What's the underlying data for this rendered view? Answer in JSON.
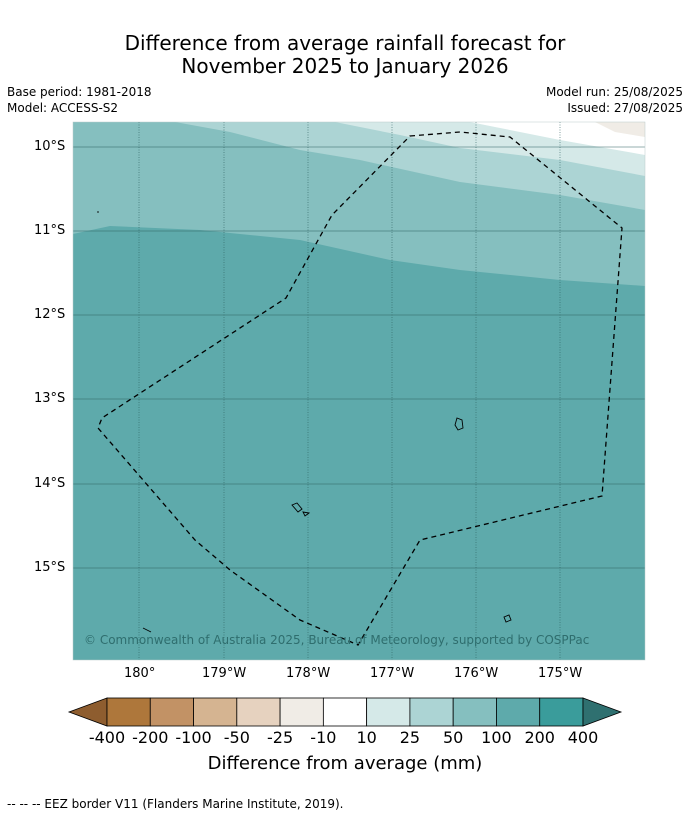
{
  "title_line1": "Difference from average rainfall forecast for",
  "title_line2": "November 2025 to January 2026",
  "base_period": "Base period: 1981-2018",
  "model": "Model: ACCESS-S2",
  "model_run": "Model run: 25/08/2025",
  "issued": "Issued: 27/08/2025",
  "copyright": "© Commonwealth of Australia 2025, Bureau of Meteorology, supported by COSPPac",
  "lat_labels": [
    "10°S",
    "11°S",
    "12°S",
    "13°S",
    "14°S",
    "15°S"
  ],
  "lon_labels": [
    "180°",
    "179°W",
    "178°W",
    "177°W",
    "176°W",
    "175°W"
  ],
  "colorbar": {
    "title": "Difference from average (mm)",
    "ticks": [
      "-400",
      "-200",
      "-100",
      "-50",
      "-25",
      "-10",
      "10",
      "25",
      "50",
      "100",
      "200",
      "400"
    ],
    "colors": [
      "#ae773b",
      "#c29265",
      "#d5b491",
      "#e6d2bf",
      "#f0ece6",
      "#ffffff",
      "#d5e9e8",
      "#acd4d4",
      "#85bfbf",
      "#5eaaab",
      "#3a9c9b"
    ],
    "under_color": "#8e5d2f",
    "over_color": "#2f7070"
  },
  "footnote": "--  --  -- EEZ border V11 (Flanders Marine Institute, 2019)."
}
